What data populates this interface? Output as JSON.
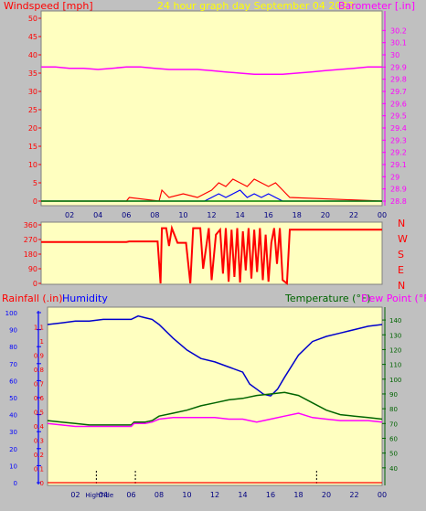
{
  "colors": {
    "background": "#c0c0c0",
    "plot_bg": "#ffffc0",
    "wind": "#ff0000",
    "wind_gust": "#0000ff",
    "wind_avg": "#008000",
    "barometer": "#ff00ff",
    "direction": "#ff0000",
    "rainfall": "#ff0000",
    "humidity": "#0000cc",
    "temperature": "#006400",
    "dew_point": "#ff00ff",
    "left_axis": "#ff0000",
    "humidity_axis": "#0000ff",
    "title": "#ffff00"
  },
  "chart_data": [
    {
      "type": "line",
      "title": "24 hour graph day   September 04 2023",
      "left_axis_label": "Windspeed [mph]",
      "right_axis_label": "Barometer [.in]",
      "x_ticks": [
        "02",
        "04",
        "06",
        "08",
        "10",
        "12",
        "14",
        "16",
        "18",
        "20",
        "22",
        "00"
      ],
      "ylim_left": [
        0,
        50
      ],
      "left_ticks": [
        "0",
        "5",
        "10",
        "15",
        "20",
        "25",
        "30",
        "35",
        "40",
        "45",
        "50"
      ],
      "ylim_right": [
        28.8,
        30.3
      ],
      "right_ticks": [
        "28.8",
        "28.9",
        "29",
        "29.1",
        "29.2",
        "29.3",
        "29.4",
        "29.5",
        "29.6",
        "29.7",
        "29.8",
        "29.9",
        "30",
        "30.1",
        "30.2"
      ],
      "series": [
        {
          "role": "barometer",
          "axis": "right",
          "x": [
            0,
            1,
            2,
            3,
            4,
            5,
            6,
            7,
            8,
            9,
            10,
            11,
            12,
            13,
            14,
            15,
            16,
            17,
            18,
            19,
            20,
            21,
            22,
            23,
            24
          ],
          "values": [
            29.9,
            29.9,
            29.89,
            29.89,
            29.88,
            29.89,
            29.9,
            29.9,
            29.89,
            29.88,
            29.88,
            29.88,
            29.87,
            29.86,
            29.85,
            29.84,
            29.84,
            29.84,
            29.85,
            29.86,
            29.87,
            29.88,
            29.89,
            29.9,
            29.9
          ]
        },
        {
          "role": "wind_gust",
          "axis": "left",
          "x": [
            0,
            6.0,
            6.2,
            8.3,
            8.5,
            9.0,
            10.0,
            11.0,
            12.0,
            12.5,
            13.0,
            13.5,
            14.0,
            14.5,
            15.0,
            15.5,
            16.0,
            16.5,
            17.0,
            17.5,
            24
          ],
          "values": [
            0,
            0,
            1,
            0,
            3,
            1,
            2,
            1,
            3,
            5,
            4,
            6,
            5,
            4,
            6,
            5,
            4,
            5,
            3,
            1,
            0
          ]
        },
        {
          "role": "wind_speed",
          "axis": "left",
          "x": [
            0,
            11.5,
            12.0,
            12.5,
            13.0,
            13.5,
            14.0,
            14.5,
            15.0,
            15.5,
            16.0,
            16.5,
            17.0,
            24
          ],
          "values": [
            0,
            0,
            1,
            2,
            1,
            2,
            3,
            1,
            2,
            1,
            2,
            1,
            0,
            0
          ]
        },
        {
          "role": "wind_avg",
          "axis": "left",
          "x": [
            0,
            24
          ],
          "values": [
            0,
            0
          ]
        }
      ]
    },
    {
      "type": "line",
      "ylim": [
        0,
        360
      ],
      "left_ticks": [
        "0",
        "90",
        "180",
        "270",
        "360"
      ],
      "compass_labels": [
        "N",
        "W",
        "S",
        "E",
        "N"
      ],
      "series": [
        {
          "role": "wind_direction",
          "x": [
            0,
            6.0,
            6.2,
            8.2,
            8.4,
            8.5,
            8.8,
            9.0,
            9.2,
            9.6,
            10.2,
            10.5,
            10.7,
            11.2,
            11.4,
            11.8,
            12.0,
            12.3,
            12.6,
            12.8,
            13.0,
            13.2,
            13.4,
            13.6,
            13.8,
            14.0,
            14.2,
            14.4,
            14.6,
            14.8,
            15.0,
            15.2,
            15.4,
            15.6,
            15.8,
            16.0,
            16.2,
            16.4,
            16.6,
            16.8,
            17.0,
            17.3,
            17.5,
            24
          ],
          "values": [
            255,
            255,
            258,
            258,
            0,
            340,
            340,
            230,
            340,
            250,
            250,
            0,
            340,
            340,
            90,
            340,
            20,
            300,
            330,
            60,
            340,
            10,
            330,
            40,
            340,
            5,
            320,
            80,
            340,
            30,
            330,
            70,
            340,
            20,
            300,
            10,
            250,
            340,
            120,
            340,
            20,
            0,
            330,
            330
          ]
        }
      ]
    },
    {
      "type": "line",
      "left_axis_label": "Rainfall (.in)",
      "humidity_axis_label": "Humidity",
      "right_axis_label_a": "Temperature (°F)",
      "right_axis_label_b": "Dew Point (°F)",
      "x_ticks": [
        "02",
        "04",
        "06",
        "08",
        "10",
        "12",
        "14",
        "16",
        "18",
        "20",
        "22",
        "00"
      ],
      "x_annotations": [
        "High",
        "Tide"
      ],
      "ylim_rain": [
        0,
        1.2
      ],
      "rain_ticks": [
        "0",
        "0.1",
        "0.2",
        "0.3",
        "0.4",
        "0.5",
        "0.6",
        "0.7",
        "0.8",
        "0.9",
        "1",
        "1.1"
      ],
      "ylim_humidity": [
        0,
        100
      ],
      "humidity_ticks": [
        "0",
        "10",
        "20",
        "30",
        "40",
        "50",
        "60",
        "70",
        "80",
        "90",
        "100"
      ],
      "ylim_temp": [
        30,
        145
      ],
      "temp_ticks": [
        "40",
        "50",
        "60",
        "70",
        "80",
        "90",
        "100",
        "110",
        "120",
        "130",
        "140"
      ],
      "series": [
        {
          "role": "humidity",
          "axis": "humidity",
          "x": [
            0,
            1,
            2,
            3,
            4,
            5,
            6,
            6.5,
            7,
            7.5,
            8,
            9,
            10,
            11,
            12,
            13,
            14,
            14.5,
            15,
            15.5,
            16,
            16.5,
            17,
            18,
            19,
            20,
            21,
            22,
            23,
            24
          ],
          "values": [
            93,
            94,
            95,
            95,
            96,
            96,
            96,
            98,
            97,
            96,
            93,
            85,
            78,
            73,
            71,
            68,
            65,
            58,
            55,
            52,
            51,
            55,
            62,
            75,
            83,
            86,
            88,
            90,
            92,
            93
          ]
        },
        {
          "role": "temperature",
          "axis": "temp",
          "x": [
            0,
            1,
            2,
            3,
            4,
            5,
            5.5,
            6,
            6.2,
            7,
            7.5,
            8,
            9,
            10,
            11,
            12,
            13,
            14,
            15,
            16,
            17,
            18,
            19,
            20,
            21,
            22,
            23,
            24
          ],
          "values": [
            72,
            71,
            70,
            69,
            69,
            69,
            69,
            69,
            71,
            71,
            72,
            75,
            77,
            79,
            82,
            84,
            86,
            87,
            89,
            90,
            91,
            89,
            84,
            79,
            76,
            75,
            74,
            73
          ]
        },
        {
          "role": "dew_point",
          "axis": "temp",
          "x": [
            0,
            1,
            2,
            3,
            4,
            5,
            5.5,
            6,
            6.2,
            7,
            7.5,
            8,
            9,
            10,
            11,
            12,
            13,
            14,
            14.5,
            15,
            15.5,
            16,
            17,
            18,
            19,
            20,
            21,
            22,
            23,
            24
          ],
          "values": [
            70,
            69,
            68,
            68,
            68,
            68,
            68,
            68,
            70,
            70,
            71,
            73,
            74,
            74,
            74,
            74,
            73,
            73,
            72,
            71,
            72,
            73,
            75,
            77,
            74,
            73,
            72,
            72,
            72,
            71
          ]
        },
        {
          "role": "rainfall",
          "axis": "rain",
          "x": [
            0,
            24
          ],
          "values": [
            0,
            0
          ]
        }
      ],
      "markers_x": [
        3.5,
        6.3,
        19.3
      ]
    }
  ]
}
